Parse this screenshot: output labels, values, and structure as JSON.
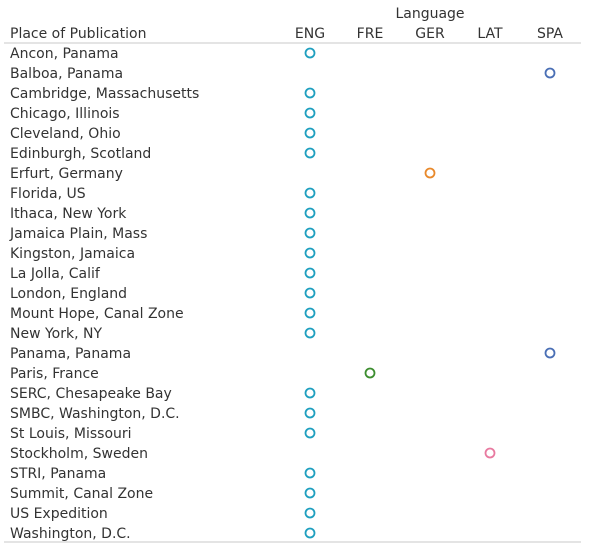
{
  "chart_data": {
    "type": "scatter",
    "title": "",
    "column_axis_title": "Language",
    "row_axis_title": "Place of Publication",
    "columns": [
      "ENG",
      "FRE",
      "GER",
      "LAT",
      "SPA"
    ],
    "rows": [
      "Ancon, Panama",
      "Balboa, Panama",
      "Cambridge, Massachusetts",
      "Chicago, Illinois",
      "Cleveland, Ohio",
      "Edinburgh, Scotland",
      "Erfurt, Germany",
      "Florida, US",
      "Ithaca, New York",
      "Jamaica Plain, Mass",
      "Kingston, Jamaica",
      "La Jolla, Calif",
      "London, England",
      "Mount Hope, Canal Zone",
      "New York, NY",
      "Panama, Panama",
      "Paris, France",
      "SERC, Chesapeake Bay",
      "SMBC, Washington, D.C.",
      "St Louis, Missouri",
      "Stockholm, Sweden",
      "STRI, Panama",
      "Summit, Canal Zone",
      "US Expedition",
      "Washington, D.C."
    ],
    "points": [
      {
        "row": "Ancon, Panama",
        "column": "ENG"
      },
      {
        "row": "Balboa, Panama",
        "column": "SPA"
      },
      {
        "row": "Cambridge, Massachusetts",
        "column": "ENG"
      },
      {
        "row": "Chicago, Illinois",
        "column": "ENG"
      },
      {
        "row": "Cleveland, Ohio",
        "column": "ENG"
      },
      {
        "row": "Edinburgh, Scotland",
        "column": "ENG"
      },
      {
        "row": "Erfurt, Germany",
        "column": "GER"
      },
      {
        "row": "Florida, US",
        "column": "ENG"
      },
      {
        "row": "Ithaca, New York",
        "column": "ENG"
      },
      {
        "row": "Jamaica Plain, Mass",
        "column": "ENG"
      },
      {
        "row": "Kingston, Jamaica",
        "column": "ENG"
      },
      {
        "row": "La Jolla, Calif",
        "column": "ENG"
      },
      {
        "row": "London, England",
        "column": "ENG"
      },
      {
        "row": "Mount Hope, Canal Zone",
        "column": "ENG"
      },
      {
        "row": "New York, NY",
        "column": "ENG"
      },
      {
        "row": "Panama, Panama",
        "column": "SPA"
      },
      {
        "row": "Paris, France",
        "column": "FRE"
      },
      {
        "row": "SERC, Chesapeake Bay",
        "column": "ENG"
      },
      {
        "row": "SMBC, Washington, D.C.",
        "column": "ENG"
      },
      {
        "row": "St Louis, Missouri",
        "column": "ENG"
      },
      {
        "row": "Stockholm, Sweden",
        "column": "LAT"
      },
      {
        "row": "STRI, Panama",
        "column": "ENG"
      },
      {
        "row": "Summit, Canal Zone",
        "column": "ENG"
      },
      {
        "row": "US Expedition",
        "column": "ENG"
      },
      {
        "row": "Washington, D.C.",
        "column": "ENG"
      }
    ],
    "colors": {
      "ENG": "#1f9fbf",
      "FRE": "#3c8d2f",
      "GER": "#e8892b",
      "LAT": "#e87aa0",
      "SPA": "#4a6fb5"
    },
    "grid": false,
    "legend": "none"
  }
}
